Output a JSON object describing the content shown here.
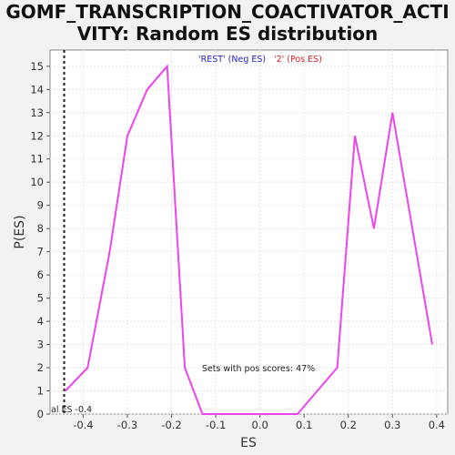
{
  "chart_data": {
    "type": "line",
    "title_lines": [
      "GOMF_TRANSCRIPTION_COACTIVATOR_ACTI",
      "VITY: Random ES distribution"
    ],
    "xlabel": "ES",
    "ylabel": "P(ES)",
    "xlim": [
      -0.475,
      0.425
    ],
    "ylim": [
      0,
      15.7
    ],
    "xticks": [
      -0.4,
      -0.3,
      -0.2,
      -0.1,
      0.0,
      0.1,
      0.2,
      0.3,
      0.4
    ],
    "xtick_labels": [
      "-0.4",
      "-0.3",
      "-0.2",
      "-0.1",
      "0.0",
      "0.1",
      "0.2",
      "0.3",
      "0.4"
    ],
    "yticks": [
      0,
      1,
      2,
      3,
      4,
      5,
      6,
      7,
      8,
      9,
      10,
      11,
      12,
      13,
      14,
      15
    ],
    "ytick_labels": [
      "0",
      "1",
      "2",
      "3",
      "4",
      "5",
      "6",
      "7",
      "8",
      "9",
      "10",
      "11",
      "12",
      "13",
      "14",
      "15"
    ],
    "grid": true,
    "series": [
      {
        "color": "#ee44ee",
        "x": [
          -0.44,
          -0.39,
          -0.34,
          -0.3,
          -0.255,
          -0.21,
          -0.17,
          -0.13,
          0.085,
          0.175,
          0.215,
          0.258,
          0.3,
          0.39
        ],
        "y": [
          1,
          2,
          7,
          12,
          14,
          15,
          2,
          0,
          0,
          2,
          12,
          8,
          13,
          3
        ]
      }
    ],
    "actual_es": {
      "x": -0.443,
      "label": "al ES -0.4",
      "color": "#222222"
    },
    "legend": {
      "placement": "top-center",
      "items": [
        {
          "label": "'REST' (Neg ES)",
          "color": "#2222cc"
        },
        {
          "label": "'2' (Pos ES)",
          "color": "#dd2222"
        }
      ]
    },
    "annotation": "Sets with pos scores: 47%"
  }
}
